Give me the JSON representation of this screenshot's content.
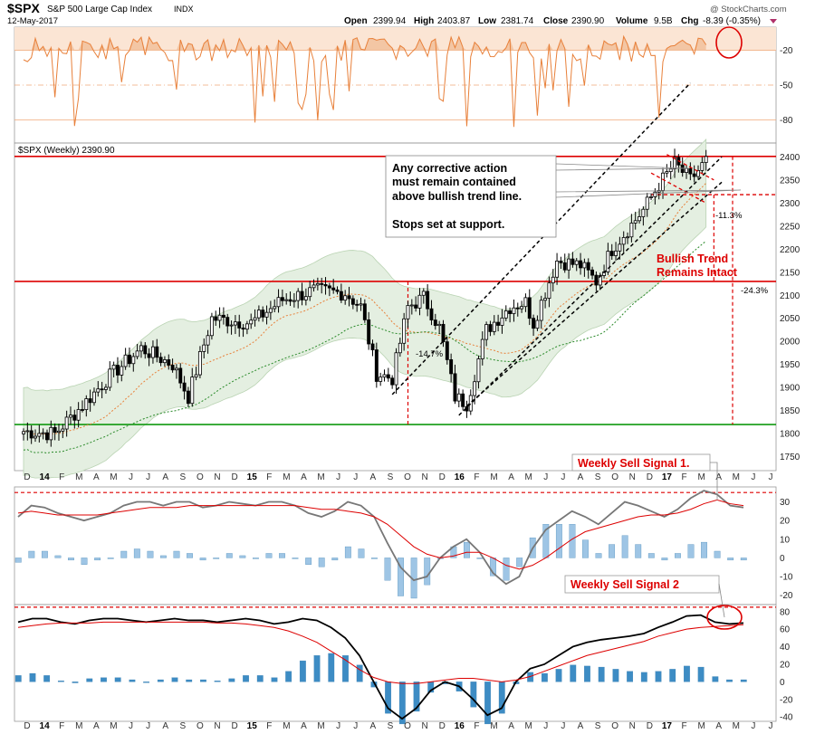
{
  "header": {
    "symbol": "$SPX",
    "name": "S&P 500 Large Cap Index",
    "exchange": "INDX",
    "date": "12-May-2017",
    "open_label": "Open",
    "open": "2399.94",
    "high_label": "High",
    "high": "2403.87",
    "low_label": "Low",
    "low": "2381.74",
    "close_label": "Close",
    "close": "2390.90",
    "volume_label": "Volume",
    "volume": "9.5B",
    "chg_label": "Chg",
    "chg": "-8.39 (-0.35%)",
    "watermark": "@ StockCharts.com",
    "price_legend": "$SPX (Weekly) 2390.90"
  },
  "colors": {
    "up": "#ffffff",
    "down": "#000000",
    "band_fill": "#e4efe1",
    "band_stroke": "#b9d3b2",
    "red": "#dd0000",
    "green": "#119911",
    "ma_short": "#e8803a",
    "ma_long": "#2a8a2a",
    "osc_fill": "#f3c6a4",
    "osc_line": "#e8803a",
    "hist1": "#9ec5e5",
    "hist2": "#3d8cc4",
    "annotation_red": "#dd0000"
  },
  "annotations": {
    "note_lines": [
      "Any corrective action",
      "must remain contained",
      "above bullish trend line.",
      "",
      "Stops set at support."
    ],
    "bullish_line1": "Bullish Trend",
    "bullish_line2": "Remains Intact",
    "drop_2015": "-14.7%",
    "drop_small": "-11.3%",
    "drop_big": "-24.3%",
    "sell1": "Weekly Sell Signal 1.",
    "sell2": "Weekly Sell Signal 2"
  },
  "chart_data": [
    {
      "panel": "oscillator",
      "type": "area",
      "y_ticks": [
        -20,
        -50,
        -80
      ],
      "ylim": [
        -100,
        0
      ]
    },
    {
      "panel": "price",
      "type": "candlestick",
      "title": "$SPX (Weekly) 2390.90",
      "y_ticks": [
        1750,
        1800,
        1850,
        1900,
        1950,
        2000,
        2050,
        2100,
        2150,
        2200,
        2250,
        2300,
        2350,
        2400
      ],
      "ylim": [
        1720,
        2430
      ],
      "x_label_span": [
        "D 2013",
        "J 2017"
      ],
      "x_months": [
        "D",
        "14",
        "F",
        "M",
        "A",
        "M",
        "J",
        "J",
        "A",
        "S",
        "O",
        "N",
        "D",
        "15",
        "F",
        "M",
        "A",
        "M",
        "J",
        "J",
        "A",
        "S",
        "O",
        "N",
        "D",
        "16",
        "F",
        "M",
        "A",
        "M",
        "J",
        "J",
        "A",
        "S",
        "O",
        "N",
        "D",
        "17",
        "F",
        "M",
        "A",
        "M",
        "J",
        "J"
      ],
      "weekly_close_anchors": [
        {
          "week": 0,
          "close": 1805
        },
        {
          "week": 8,
          "close": 1800
        },
        {
          "week": 16,
          "close": 1870
        },
        {
          "week": 22,
          "close": 1925
        },
        {
          "week": 30,
          "close": 1985
        },
        {
          "week": 38,
          "close": 1950
        },
        {
          "week": 42,
          "close": 1880
        },
        {
          "week": 48,
          "close": 2050
        },
        {
          "week": 58,
          "close": 2040
        },
        {
          "week": 66,
          "close": 2090
        },
        {
          "week": 74,
          "close": 2110
        },
        {
          "week": 82,
          "close": 2105
        },
        {
          "week": 86,
          "close": 2075
        },
        {
          "week": 90,
          "close": 1930
        },
        {
          "week": 94,
          "close": 1920
        },
        {
          "week": 98,
          "close": 2075
        },
        {
          "week": 102,
          "close": 2095
        },
        {
          "week": 106,
          "close": 2030
        },
        {
          "week": 110,
          "close": 1880
        },
        {
          "week": 113,
          "close": 1865
        },
        {
          "week": 118,
          "close": 2025
        },
        {
          "week": 124,
          "close": 2075
        },
        {
          "week": 128,
          "close": 2085
        },
        {
          "week": 130,
          "close": 2040
        },
        {
          "week": 136,
          "close": 2175
        },
        {
          "week": 142,
          "close": 2165
        },
        {
          "week": 146,
          "close": 2130
        },
        {
          "week": 150,
          "close": 2200
        },
        {
          "week": 158,
          "close": 2285
        },
        {
          "week": 162,
          "close": 2340
        },
        {
          "week": 166,
          "close": 2385
        },
        {
          "week": 170,
          "close": 2350
        },
        {
          "week": 174,
          "close": 2391
        }
      ],
      "horizontal_levels": [
        {
          "value": 2401,
          "color": "red"
        },
        {
          "value": 2130,
          "color": "red"
        },
        {
          "value": 1820,
          "color": "green"
        },
        {
          "value": 2318,
          "color": "red",
          "style": "dashed"
        }
      ],
      "drawdowns": [
        "-14.7%",
        "-11.3%",
        "-24.3%"
      ]
    },
    {
      "panel": "macd_1",
      "type": "line",
      "y_ticks": [
        30,
        20,
        10,
        0,
        -10,
        -20
      ],
      "ylim": [
        -25,
        38
      ],
      "series": [
        {
          "values": [
            22,
            28,
            27,
            24,
            22,
            20,
            22,
            24,
            28,
            30,
            30,
            28,
            30,
            30,
            27,
            28,
            30,
            29,
            28,
            30,
            30,
            28,
            24,
            22,
            25,
            30,
            28,
            22,
            8,
            -5,
            -12,
            -10,
            0,
            6,
            10,
            3,
            -8,
            -14,
            -10,
            5,
            15,
            20,
            25,
            22,
            18,
            24,
            30,
            28,
            25,
            22,
            26,
            32,
            36,
            34,
            28,
            27
          ]
        },
        {
          "values": [
            24,
            25,
            24,
            23,
            23,
            23,
            23,
            24,
            25,
            26,
            27,
            27,
            27,
            28,
            28,
            28,
            28,
            28,
            28,
            28,
            28,
            28,
            27,
            26,
            26,
            25,
            24,
            22,
            18,
            12,
            6,
            2,
            0,
            1,
            3,
            3,
            0,
            -4,
            -6,
            -4,
            0,
            5,
            10,
            14,
            16,
            18,
            20,
            22,
            23,
            23,
            24,
            26,
            29,
            31,
            29,
            28
          ]
        }
      ],
      "histogram_name": "MACD histogram"
    },
    {
      "panel": "macd_2",
      "type": "line",
      "y_ticks": [
        80,
        60,
        40,
        20,
        0,
        -20,
        -40
      ],
      "ylim": [
        -45,
        88
      ],
      "series": [
        {
          "values": [
            68,
            72,
            72,
            68,
            66,
            70,
            72,
            72,
            70,
            68,
            70,
            72,
            70,
            70,
            68,
            70,
            72,
            70,
            66,
            68,
            72,
            70,
            62,
            50,
            30,
            0,
            -30,
            -42,
            -30,
            -10,
            0,
            -5,
            -20,
            -38,
            -30,
            0,
            15,
            20,
            30,
            40,
            45,
            48,
            50,
            52,
            55,
            62,
            68,
            75,
            76,
            68,
            66,
            67
          ]
        },
        {
          "values": [
            62,
            64,
            66,
            67,
            67,
            67,
            68,
            68,
            68,
            68,
            68,
            68,
            68,
            68,
            67,
            67,
            66,
            64,
            62,
            58,
            52,
            45,
            35,
            25,
            14,
            5,
            0,
            -2,
            -2,
            0,
            2,
            4,
            4,
            2,
            0,
            2,
            6,
            12,
            18,
            24,
            30,
            34,
            38,
            42,
            46,
            52,
            56,
            60,
            62,
            63,
            64,
            65
          ]
        }
      ]
    }
  ]
}
